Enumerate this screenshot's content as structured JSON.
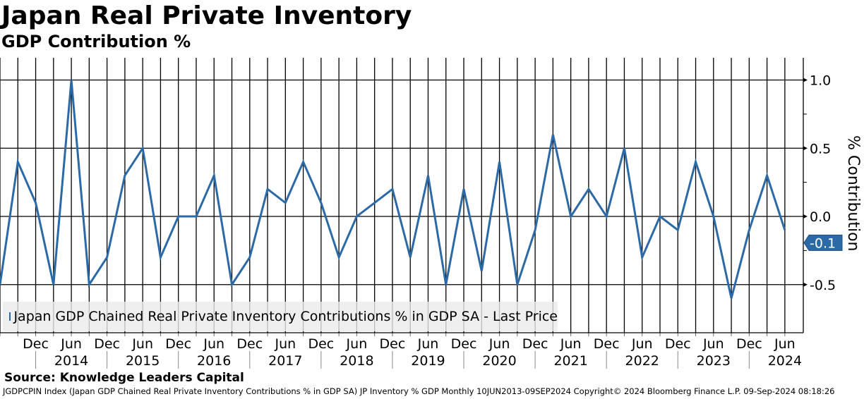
{
  "title": "Japan Real Private Inventory",
  "subtitle": "GDP Contribution %",
  "source": "Source: Knowledge Leaders Capital",
  "footer": "JGDPCPIN Index (Japan GDP Chained Real Private Inventory Contributions % in GDP SA) JP Inventory % GDP  Monthly 10JUN2013-09SEP2024 Copyright© 2024 Bloomberg Finance L.P. 09-Sep-2024 08:18:26",
  "colors": {
    "series": "#2b6aa6",
    "grid": "#000000"
  },
  "chart_data": {
    "type": "line",
    "ylabel": "% Contribution",
    "ylim": [
      -0.85,
      1.17
    ],
    "yticks": [
      1.0,
      0.5,
      0.0,
      -0.5
    ],
    "ytick_labels": [
      "1.0",
      "0.5",
      "0.0",
      "-0.5"
    ],
    "x_start": "Jun 2013",
    "frequency": "quarterly",
    "xticks": [
      "Dec",
      "Jun",
      "Dec",
      "Jun",
      "Dec",
      "Jun",
      "Dec",
      "Jun",
      "Dec",
      "Jun",
      "Dec",
      "Jun",
      "Dec",
      "Jun",
      "Dec",
      "Jun",
      "Dec",
      "Jun",
      "Dec",
      "Jun",
      "Dec",
      "Jun"
    ],
    "years": [
      "2014",
      "2015",
      "2016",
      "2017",
      "2018",
      "2019",
      "2020",
      "2021",
      "2022",
      "2023",
      "2024"
    ],
    "legend": "Japan GDP Chained Real Private Inventory Contributions % in GDP SA - Last Price",
    "legend_position": "bottom-left",
    "last_value_label": "-0.1",
    "series": [
      {
        "name": "Japan GDP Chained Real Private Inventory Contributions % in GDP SA - Last Price",
        "values": [
          -0.5,
          0.4,
          0.1,
          -0.5,
          1.0,
          -0.5,
          -0.3,
          0.3,
          0.5,
          -0.3,
          0.0,
          0.0,
          0.3,
          -0.5,
          -0.3,
          0.2,
          0.1,
          0.4,
          0.1,
          -0.3,
          0.0,
          0.1,
          0.2,
          -0.3,
          0.3,
          -0.5,
          0.2,
          -0.4,
          0.4,
          -0.5,
          -0.1,
          0.6,
          0.0,
          0.2,
          0.0,
          0.5,
          -0.3,
          0.0,
          -0.1,
          0.4,
          0.0,
          -0.6,
          -0.1,
          0.3,
          -0.1
        ]
      }
    ]
  }
}
